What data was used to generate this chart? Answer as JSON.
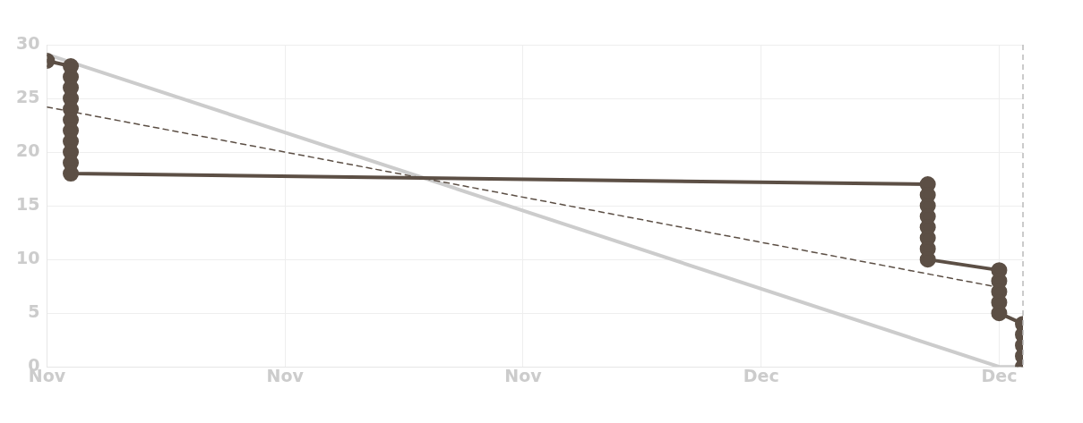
{
  "chart_data": {
    "type": "line",
    "xlim": [
      "--11-01",
      "--12-12"
    ],
    "xticks": [
      {
        "value": "--11-01",
        "label": "Nov"
      },
      {
        "value": "--11-11",
        "label": "Nov"
      },
      {
        "value": "--11-21",
        "label": "Nov"
      },
      {
        "value": "--12-01",
        "label": "Dec"
      },
      {
        "value": "--12-11",
        "label": "Dec"
      }
    ],
    "ylim": [
      0,
      30
    ],
    "yticks": [
      0,
      5,
      10,
      15,
      20,
      25,
      30
    ],
    "grid": true,
    "legend": false,
    "series": [
      {
        "color": "#cccccc",
        "marker": "none",
        "line_style": "solid",
        "x": [
          "--11-01",
          "--12-11",
          "--12-12"
        ],
        "values": [
          29.1,
          0,
          0
        ]
      },
      {
        "color": "#5c4f45",
        "marker": "none",
        "line_style": "dashed",
        "x": [
          "--11-01",
          "--12-11"
        ],
        "values": [
          24.2,
          7.4
        ]
      },
      {
        "type": "step",
        "color": "#5c4f45",
        "marker": "circle",
        "line_style": "solid",
        "x": [
          "--11-01",
          "--11-02",
          "--11-02",
          "--11-02",
          "--11-02",
          "--11-02",
          "--11-02",
          "--11-02",
          "--11-02",
          "--11-02",
          "--11-02",
          "--11-02",
          "--12-08",
          "--12-08",
          "--12-08",
          "--12-08",
          "--12-08",
          "--12-08",
          "--12-08",
          "--12-08",
          "--12-11",
          "--12-11",
          "--12-11",
          "--12-11",
          "--12-11",
          "--12-12",
          "--12-12",
          "--12-12",
          "--12-12",
          "--12-12"
        ],
        "values": [
          28.5,
          28,
          27,
          26,
          25,
          24,
          23,
          22,
          21,
          20,
          19,
          18,
          17,
          16,
          15,
          14,
          13,
          12,
          11,
          10,
          9,
          8,
          7,
          6,
          5,
          4,
          3,
          2,
          1,
          0
        ]
      }
    ],
    "ref_lines": [
      {
        "axis": "x",
        "value": "--12-12",
        "color": "#bbbbbb",
        "line_style": "dashed"
      }
    ]
  }
}
